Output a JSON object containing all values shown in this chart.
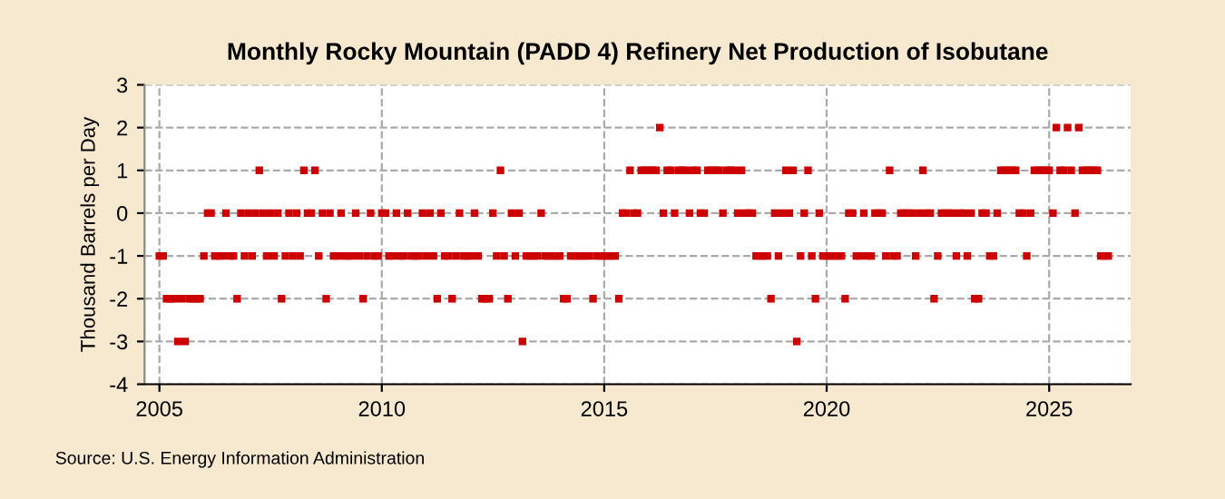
{
  "chart_data": {
    "type": "scatter",
    "title": "Monthly Rocky Mountain (PADD 4) Refinery Net Production of Isobutane",
    "ylabel": "Thousand Barrels per Day",
    "annotations": [
      "Source: U.S. Energy Information Administration"
    ],
    "marker": "square",
    "grid": true,
    "xlim": [
      "2004-09",
      "2026-11"
    ],
    "ylim": [
      -4,
      3
    ],
    "yticks": [
      -4,
      -3,
      -2,
      -1,
      0,
      1,
      2,
      3
    ],
    "xticks": [
      "2005",
      "2010",
      "2015",
      "2020",
      "2025"
    ],
    "x": [
      "2005-01",
      "2005-02",
      "2005-03",
      "2005-04",
      "2005-05",
      "2005-06",
      "2005-07",
      "2005-08",
      "2005-09",
      "2005-10",
      "2005-11",
      "2005-12",
      "2006-01",
      "2006-02",
      "2006-03",
      "2006-04",
      "2006-05",
      "2006-06",
      "2006-07",
      "2006-08",
      "2006-09",
      "2006-10",
      "2006-11",
      "2006-12",
      "2007-01",
      "2007-02",
      "2007-03",
      "2007-04",
      "2007-05",
      "2007-06",
      "2007-07",
      "2007-08",
      "2007-09",
      "2007-10",
      "2007-11",
      "2007-12",
      "2008-01",
      "2008-02",
      "2008-03",
      "2008-04",
      "2008-05",
      "2008-06",
      "2008-07",
      "2008-08",
      "2008-09",
      "2008-10",
      "2008-11",
      "2008-12",
      "2009-01",
      "2009-02",
      "2009-03",
      "2009-04",
      "2009-05",
      "2009-06",
      "2009-07",
      "2009-08",
      "2009-09",
      "2009-10",
      "2009-11",
      "2009-12",
      "2010-01",
      "2010-02",
      "2010-03",
      "2010-04",
      "2010-05",
      "2010-06",
      "2010-07",
      "2010-08",
      "2010-09",
      "2010-10",
      "2010-11",
      "2010-12",
      "2011-01",
      "2011-02",
      "2011-03",
      "2011-04",
      "2011-05",
      "2011-06",
      "2011-07",
      "2011-08",
      "2011-09",
      "2011-10",
      "2011-11",
      "2011-12",
      "2012-01",
      "2012-02",
      "2012-03",
      "2012-04",
      "2012-05",
      "2012-06",
      "2012-07",
      "2012-08",
      "2012-09",
      "2012-10",
      "2012-11",
      "2012-12",
      "2013-01",
      "2013-02",
      "2013-03",
      "2013-04",
      "2013-05",
      "2013-06",
      "2013-07",
      "2013-08",
      "2013-09",
      "2013-10",
      "2013-11",
      "2013-12",
      "2014-01",
      "2014-02",
      "2014-03",
      "2014-04",
      "2014-05",
      "2014-06",
      "2014-07",
      "2014-08",
      "2014-09",
      "2014-10",
      "2014-11",
      "2014-12",
      "2015-01",
      "2015-02",
      "2015-03",
      "2015-04",
      "2015-05",
      "2015-06",
      "2015-07",
      "2015-08",
      "2015-09",
      "2015-10",
      "2015-11",
      "2015-12",
      "2016-01",
      "2016-02",
      "2016-03",
      "2016-04",
      "2016-05",
      "2016-06",
      "2016-07",
      "2016-08",
      "2016-09",
      "2016-10",
      "2016-11",
      "2016-12",
      "2017-01",
      "2017-02",
      "2017-03",
      "2017-04",
      "2017-05",
      "2017-06",
      "2017-07",
      "2017-08",
      "2017-09",
      "2017-10",
      "2017-11",
      "2017-12",
      "2018-01",
      "2018-02",
      "2018-03",
      "2018-04",
      "2018-05",
      "2018-06",
      "2018-07",
      "2018-08",
      "2018-09",
      "2018-10",
      "2018-11",
      "2018-12",
      "2019-01",
      "2019-02",
      "2019-03",
      "2019-04",
      "2019-05",
      "2019-06",
      "2019-07",
      "2019-08",
      "2019-09",
      "2019-10",
      "2019-11",
      "2019-12",
      "2020-01",
      "2020-02",
      "2020-03",
      "2020-04",
      "2020-05",
      "2020-06",
      "2020-07",
      "2020-08",
      "2020-09",
      "2020-10",
      "2020-11",
      "2020-12",
      "2021-01",
      "2021-02",
      "2021-03",
      "2021-04",
      "2021-05",
      "2021-06",
      "2021-07",
      "2021-08",
      "2021-09",
      "2021-10",
      "2021-11",
      "2021-12",
      "2022-01",
      "2022-02",
      "2022-03",
      "2022-04",
      "2022-05",
      "2022-06",
      "2022-07",
      "2022-08",
      "2022-09",
      "2022-10",
      "2022-11",
      "2022-12",
      "2023-01",
      "2023-02",
      "2023-03",
      "2023-04",
      "2023-05",
      "2023-06",
      "2023-07",
      "2023-08",
      "2023-09",
      "2023-10",
      "2023-11",
      "2023-12",
      "2024-01",
      "2024-02",
      "2024-03",
      "2024-04",
      "2024-05",
      "2024-06",
      "2024-07",
      "2024-08",
      "2024-09",
      "2024-10",
      "2024-11",
      "2024-12",
      "2025-01",
      "2025-02",
      "2025-03",
      "2025-04",
      "2025-05",
      "2025-06",
      "2025-07",
      "2025-08",
      "2025-09",
      "2025-10",
      "2025-11",
      "2025-12",
      "2026-01",
      "2026-02",
      "2026-03",
      "2026-04",
      "2026-05"
    ],
    "series": [
      {
        "color": "#cc0000",
        "values": [
          -1,
          -1,
          -2,
          -2,
          -2,
          -3,
          -2,
          -3,
          -2,
          -2,
          -2,
          -2,
          -1,
          0,
          0,
          -1,
          -1,
          -1,
          0,
          -1,
          -1,
          -2,
          0,
          -1,
          0,
          -1,
          0,
          1,
          0,
          -1,
          0,
          -1,
          0,
          -2,
          -1,
          0,
          -1,
          0,
          -1,
          1,
          0,
          0,
          1,
          -1,
          0,
          -2,
          0,
          -1,
          -1,
          0,
          -1,
          -1,
          -1,
          0,
          -1,
          -2,
          -1,
          0,
          -1,
          -1,
          0,
          0,
          -1,
          -1,
          0,
          -1,
          -1,
          0,
          -1,
          -1,
          -1,
          0,
          -1,
          0,
          -1,
          -2,
          0,
          -1,
          -1,
          -2,
          -1,
          0,
          -1,
          -1,
          -1,
          0,
          -1,
          -2,
          -2,
          -2,
          0,
          -1,
          1,
          -1,
          -2,
          0,
          -1,
          0,
          -3,
          -1,
          -1,
          -1,
          -1,
          0,
          -1,
          -1,
          -1,
          -1,
          -1,
          -2,
          -2,
          -1,
          -1,
          -1,
          -1,
          -1,
          -1,
          -2,
          -1,
          -1,
          -1,
          -1,
          -1,
          -1,
          -2,
          0,
          0,
          1,
          0,
          0,
          1,
          1,
          1,
          1,
          1,
          2,
          0,
          1,
          1,
          0,
          1,
          1,
          1,
          0,
          1,
          1,
          0,
          0,
          1,
          1,
          1,
          1,
          0,
          1,
          1,
          1,
          0,
          1,
          0,
          0,
          0,
          -1,
          -1,
          -1,
          -1,
          -2,
          0,
          -1,
          0,
          1,
          0,
          1,
          -3,
          -1,
          0,
          1,
          -1,
          -2,
          0,
          -1,
          -1,
          -1,
          -1,
          -1,
          -1,
          -2,
          0,
          0,
          -1,
          -1,
          0,
          -1,
          -1,
          0,
          0,
          0,
          -1,
          1,
          -1,
          -1,
          0,
          0,
          0,
          0,
          -1,
          0,
          1,
          0,
          0,
          -2,
          -1,
          0,
          0,
          0,
          0,
          -1,
          0,
          0,
          -1,
          0,
          -2,
          -2,
          0,
          0,
          -1,
          -1,
          0,
          1,
          1,
          1,
          1,
          1,
          0,
          0,
          -1,
          0,
          1,
          1,
          1,
          1,
          1,
          0,
          2,
          1,
          1,
          2,
          1,
          0,
          2,
          1,
          1,
          1,
          1,
          1,
          -1,
          -1,
          -1
        ]
      }
    ]
  }
}
